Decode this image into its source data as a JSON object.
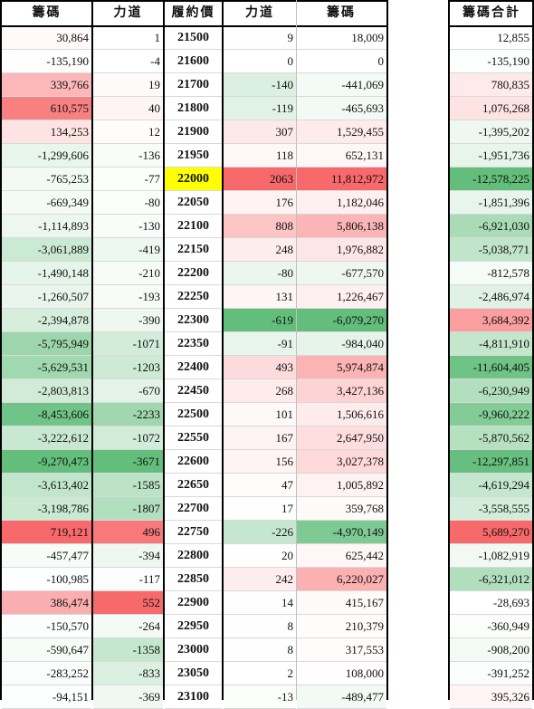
{
  "headers": {
    "call_chips": "籌碼",
    "call_force": "力道",
    "strike": "履約價",
    "put_force": "力道",
    "put_chips": "籌碼",
    "total_chips": "籌碼合計"
  },
  "rows": [
    {
      "call_chips": "30,864",
      "call_force": "1",
      "strike": "21500",
      "put_force": "9",
      "put_chips": "18,009",
      "total": "12,855"
    },
    {
      "call_chips": "-135,190",
      "call_force": "-4",
      "strike": "21600",
      "put_force": "0",
      "put_chips": "0",
      "total": "-135,190"
    },
    {
      "call_chips": "339,766",
      "call_force": "19",
      "strike": "21700",
      "put_force": "-140",
      "put_chips": "-441,069",
      "total": "780,835"
    },
    {
      "call_chips": "610,575",
      "call_force": "40",
      "strike": "21800",
      "put_force": "-119",
      "put_chips": "-465,693",
      "total": "1,076,268"
    },
    {
      "call_chips": "134,253",
      "call_force": "12",
      "strike": "21900",
      "put_force": "307",
      "put_chips": "1,529,455",
      "total": "-1,395,202"
    },
    {
      "call_chips": "-1,299,606",
      "call_force": "-136",
      "strike": "21950",
      "put_force": "118",
      "put_chips": "652,131",
      "total": "-1,951,736"
    },
    {
      "call_chips": "-765,253",
      "call_force": "-77",
      "strike": "22000",
      "put_force": "2063",
      "put_chips": "11,812,972",
      "total": "-12,578,225"
    },
    {
      "call_chips": "-669,349",
      "call_force": "-80",
      "strike": "22050",
      "put_force": "176",
      "put_chips": "1,182,046",
      "total": "-1,851,396"
    },
    {
      "call_chips": "-1,114,893",
      "call_force": "-130",
      "strike": "22100",
      "put_force": "808",
      "put_chips": "5,806,138",
      "total": "-6,921,030"
    },
    {
      "call_chips": "-3,061,889",
      "call_force": "-419",
      "strike": "22150",
      "put_force": "248",
      "put_chips": "1,976,882",
      "total": "-5,038,771"
    },
    {
      "call_chips": "-1,490,148",
      "call_force": "-210",
      "strike": "22200",
      "put_force": "-80",
      "put_chips": "-677,570",
      "total": "-812,578"
    },
    {
      "call_chips": "-1,260,507",
      "call_force": "-193",
      "strike": "22250",
      "put_force": "131",
      "put_chips": "1,226,467",
      "total": "-2,486,974"
    },
    {
      "call_chips": "-2,394,878",
      "call_force": "-390",
      "strike": "22300",
      "put_force": "-619",
      "put_chips": "-6,079,270",
      "total": "3,684,392"
    },
    {
      "call_chips": "-5,795,949",
      "call_force": "-1071",
      "strike": "22350",
      "put_force": "-91",
      "put_chips": "-984,040",
      "total": "-4,811,910"
    },
    {
      "call_chips": "-5,629,531",
      "call_force": "-1203",
      "strike": "22400",
      "put_force": "493",
      "put_chips": "5,974,874",
      "total": "-11,604,405"
    },
    {
      "call_chips": "-2,803,813",
      "call_force": "-670",
      "strike": "22450",
      "put_force": "268",
      "put_chips": "3,427,136",
      "total": "-6,230,949"
    },
    {
      "call_chips": "-8,453,606",
      "call_force": "-2233",
      "strike": "22500",
      "put_force": "101",
      "put_chips": "1,506,616",
      "total": "-9,960,222"
    },
    {
      "call_chips": "-3,222,612",
      "call_force": "-1072",
      "strike": "22550",
      "put_force": "167",
      "put_chips": "2,647,950",
      "total": "-5,870,562"
    },
    {
      "call_chips": "-9,270,473",
      "call_force": "-3671",
      "strike": "22600",
      "put_force": "156",
      "put_chips": "3,027,378",
      "total": "-12,297,851"
    },
    {
      "call_chips": "-3,613,402",
      "call_force": "-1585",
      "strike": "22650",
      "put_force": "47",
      "put_chips": "1,005,892",
      "total": "-4,619,294"
    },
    {
      "call_chips": "-3,198,786",
      "call_force": "-1807",
      "strike": "22700",
      "put_force": "17",
      "put_chips": "359,768",
      "total": "-3,558,555"
    },
    {
      "call_chips": "719,121",
      "call_force": "496",
      "strike": "22750",
      "put_force": "-226",
      "put_chips": "-4,970,149",
      "total": "5,689,270"
    },
    {
      "call_chips": "-457,477",
      "call_force": "-394",
      "strike": "22800",
      "put_force": "20",
      "put_chips": "625,442",
      "total": "-1,082,919"
    },
    {
      "call_chips": "-100,985",
      "call_force": "-117",
      "strike": "22850",
      "put_force": "242",
      "put_chips": "6,220,027",
      "total": "-6,321,012"
    },
    {
      "call_chips": "386,474",
      "call_force": "552",
      "strike": "22900",
      "put_force": "14",
      "put_chips": "415,167",
      "total": "-28,693"
    },
    {
      "call_chips": "-150,570",
      "call_force": "-264",
      "strike": "22950",
      "put_force": "8",
      "put_chips": "210,379",
      "total": "-360,949"
    },
    {
      "call_chips": "-590,647",
      "call_force": "-1358",
      "strike": "23000",
      "put_force": "8",
      "put_chips": "317,553",
      "total": "-908,200"
    },
    {
      "call_chips": "-283,252",
      "call_force": "-833",
      "strike": "23050",
      "put_force": "2",
      "put_chips": "108,000",
      "total": "-391,252"
    },
    {
      "call_chips": "-94,151",
      "call_force": "-369",
      "strike": "23100",
      "put_force": "-13",
      "put_chips": "-489,477",
      "total": "395,326"
    }
  ],
  "highlight_strike": "22000",
  "colors": {
    "positive": "#f8696b",
    "negative": "#63be7b",
    "highlight": "#ffff00",
    "grid": "#d9d9d9"
  }
}
